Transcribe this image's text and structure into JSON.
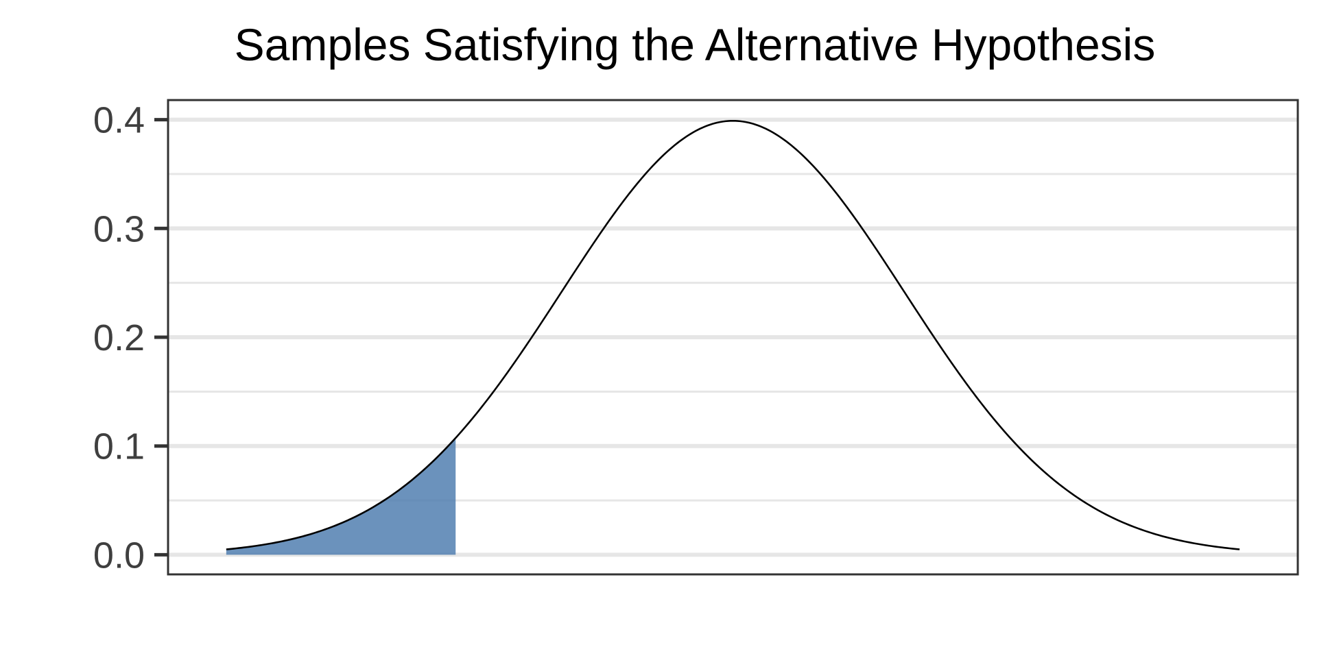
{
  "chart_data": {
    "type": "area",
    "title": "Samples Satisfying the Alternative Hypothesis",
    "xlabel": "",
    "ylabel": "",
    "distribution": "standard normal density",
    "xlim": [
      -3.3,
      3.3
    ],
    "x_range": [
      -2.96,
      2.96
    ],
    "ylim": [
      -0.018,
      0.418
    ],
    "y_ticks": [
      0.0,
      0.1,
      0.2,
      0.3,
      0.4
    ],
    "y_tick_labels": [
      "0.0",
      "0.1",
      "0.2",
      "0.3",
      "0.4"
    ],
    "x_ticks_shown": false,
    "grid": {
      "major_y": true,
      "minor_y": true,
      "x": false
    },
    "shaded_region": {
      "from": -2.96,
      "to": -1.62,
      "description": "lower tail shaded",
      "color": "#4a7aad",
      "opacity": 0.82
    },
    "curve_color": "#000000",
    "grid_color": "#e6e6e6",
    "panel_border_color": "#333333",
    "legend": "none"
  }
}
